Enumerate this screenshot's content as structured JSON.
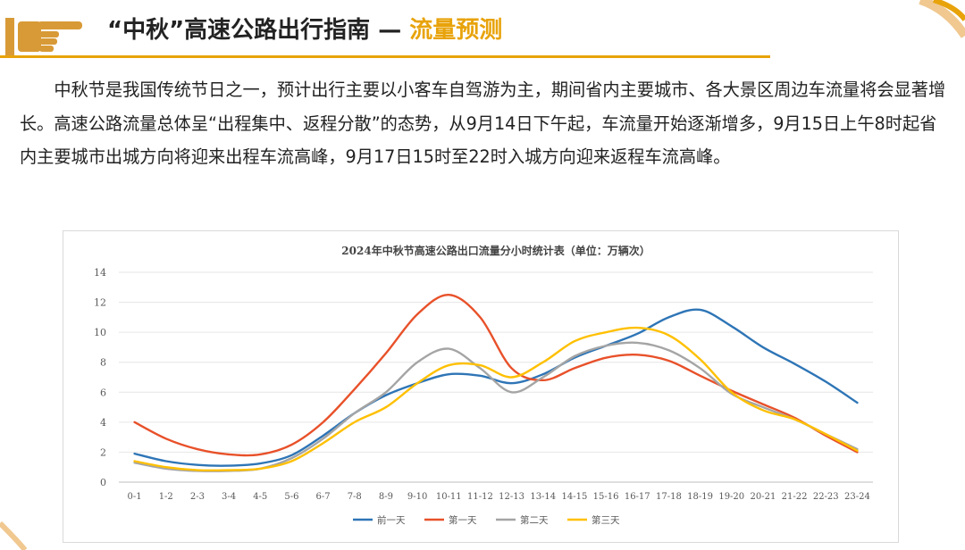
{
  "header": {
    "title_main": "“中秋”高速公路出行指南 — ",
    "title_accent": "流量预测"
  },
  "intro": {
    "paragraph": "中秋节是我国传统节日之一，预计出行主要以小客车自驾游为主，期间省内主要城市、各大景区周边车流量将会显著增长。高速公路流量总体呈“出程集中、返程分散”的态势，从9月14日下午起，车流量开始逐渐增多，9月15日上午8时起省内主要城市出城方向将迎来出程车流高峰，9月17日15时至22时入城方向迎来返程车流高峰。"
  },
  "colors": {
    "accent": "#e8a30b",
    "text": "#222222"
  },
  "chart_data": {
    "type": "line",
    "title": "2024年中秋节高速公路出口流量分小时统计表（单位：万辆次）",
    "xlabel": "",
    "ylabel": "",
    "ylim": [
      0,
      14
    ],
    "yticks": [
      0,
      2,
      4,
      6,
      8,
      10,
      12,
      14
    ],
    "grid": true,
    "legend": "bottom",
    "categories": [
      "0-1",
      "1-2",
      "2-3",
      "3-4",
      "4-5",
      "5-6",
      "6-7",
      "7-8",
      "8-9",
      "9-10",
      "10-11",
      "11-12",
      "12-13",
      "13-14",
      "14-15",
      "15-16",
      "16-17",
      "17-18",
      "18-19",
      "19-20",
      "20-21",
      "21-22",
      "22-23",
      "23-24"
    ],
    "series": [
      {
        "name": "前一天",
        "color": "#2e75b6",
        "values": [
          1.9,
          1.4,
          1.15,
          1.1,
          1.25,
          1.8,
          3.1,
          4.6,
          5.8,
          6.6,
          7.2,
          7.1,
          6.6,
          7.2,
          8.3,
          9.1,
          9.9,
          11.0,
          11.5,
          10.4,
          9.0,
          7.9,
          6.7,
          5.3
        ]
      },
      {
        "name": "第一天",
        "color": "#e8512a",
        "values": [
          4.0,
          2.9,
          2.2,
          1.85,
          1.85,
          2.5,
          4.0,
          6.2,
          8.6,
          11.2,
          12.5,
          11.0,
          7.6,
          6.8,
          7.6,
          8.3,
          8.5,
          8.1,
          7.1,
          6.1,
          5.2,
          4.3,
          3.1,
          2.0
        ]
      },
      {
        "name": "第二天",
        "color": "#a5a5a5",
        "values": [
          1.3,
          0.9,
          0.75,
          0.75,
          0.9,
          1.6,
          2.9,
          4.6,
          6.0,
          8.0,
          8.9,
          7.6,
          6.0,
          7.0,
          8.4,
          9.1,
          9.3,
          8.8,
          7.6,
          5.9,
          5.0,
          4.2,
          3.2,
          2.2
        ]
      },
      {
        "name": "第三天",
        "color": "#ffc000",
        "values": [
          1.4,
          1.0,
          0.8,
          0.8,
          0.9,
          1.4,
          2.6,
          4.0,
          5.0,
          6.6,
          7.8,
          7.8,
          7.0,
          8.0,
          9.4,
          10.0,
          10.3,
          9.8,
          8.2,
          6.0,
          4.8,
          4.2,
          3.2,
          2.1
        ]
      }
    ]
  }
}
